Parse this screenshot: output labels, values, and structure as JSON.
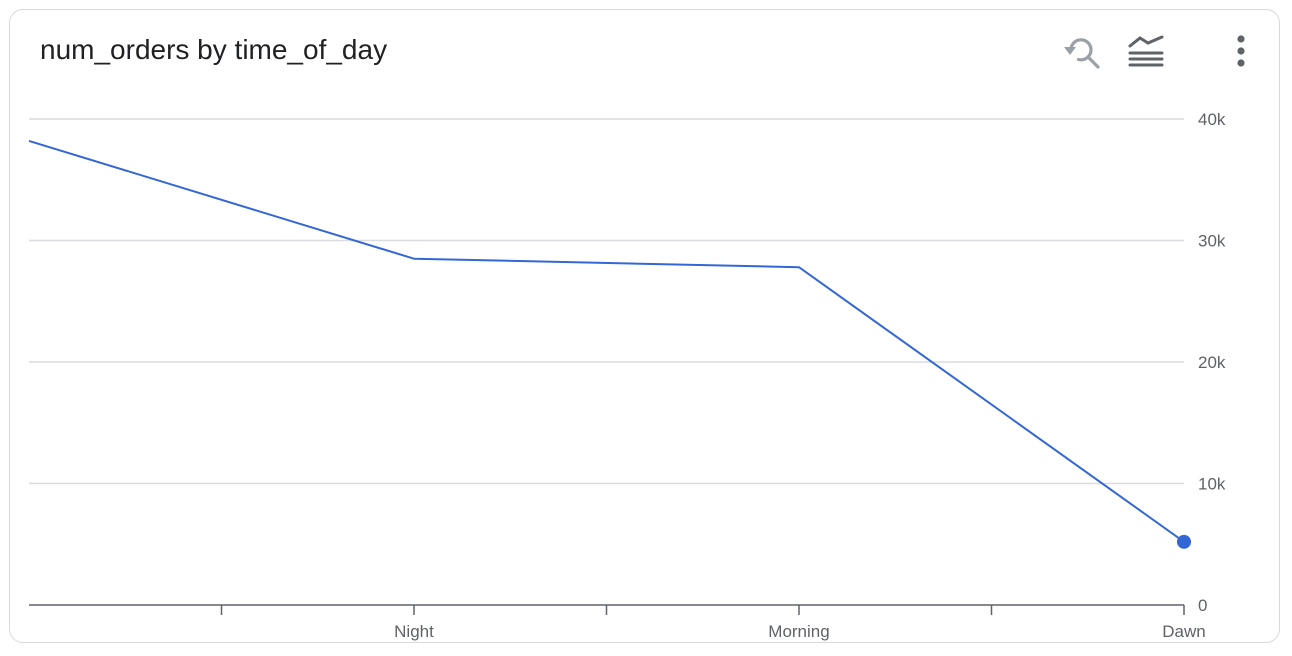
{
  "header": {
    "title": "num_orders by time_of_day"
  },
  "toolbar": {
    "zoom_icon": "zoom-reset-icon",
    "legend_icon": "legend-toggle-icon",
    "menu_icon": "more-vert-icon"
  },
  "colors": {
    "series": "#3367d6",
    "grid": "#dadce0",
    "axis": "#5f6368",
    "icon_muted": "#9aa0a6",
    "icon_dark": "#5f6368"
  },
  "chart_data": {
    "type": "line",
    "title": "num_orders by time_of_day",
    "xlabel": "",
    "ylabel": "",
    "categories": [
      "",
      "Night",
      "Morning",
      "Dawn"
    ],
    "series": [
      {
        "values": [
          38200,
          28500,
          27800,
          5200
        ]
      }
    ],
    "ylim": [
      0,
      40000
    ],
    "yticks": [
      0,
      10000,
      20000,
      30000,
      40000
    ],
    "ytick_labels": [
      "0",
      "10k",
      "20k",
      "30k",
      "40k"
    ],
    "grid": true,
    "y_axis_side": "right",
    "highlight_last_point": true
  }
}
